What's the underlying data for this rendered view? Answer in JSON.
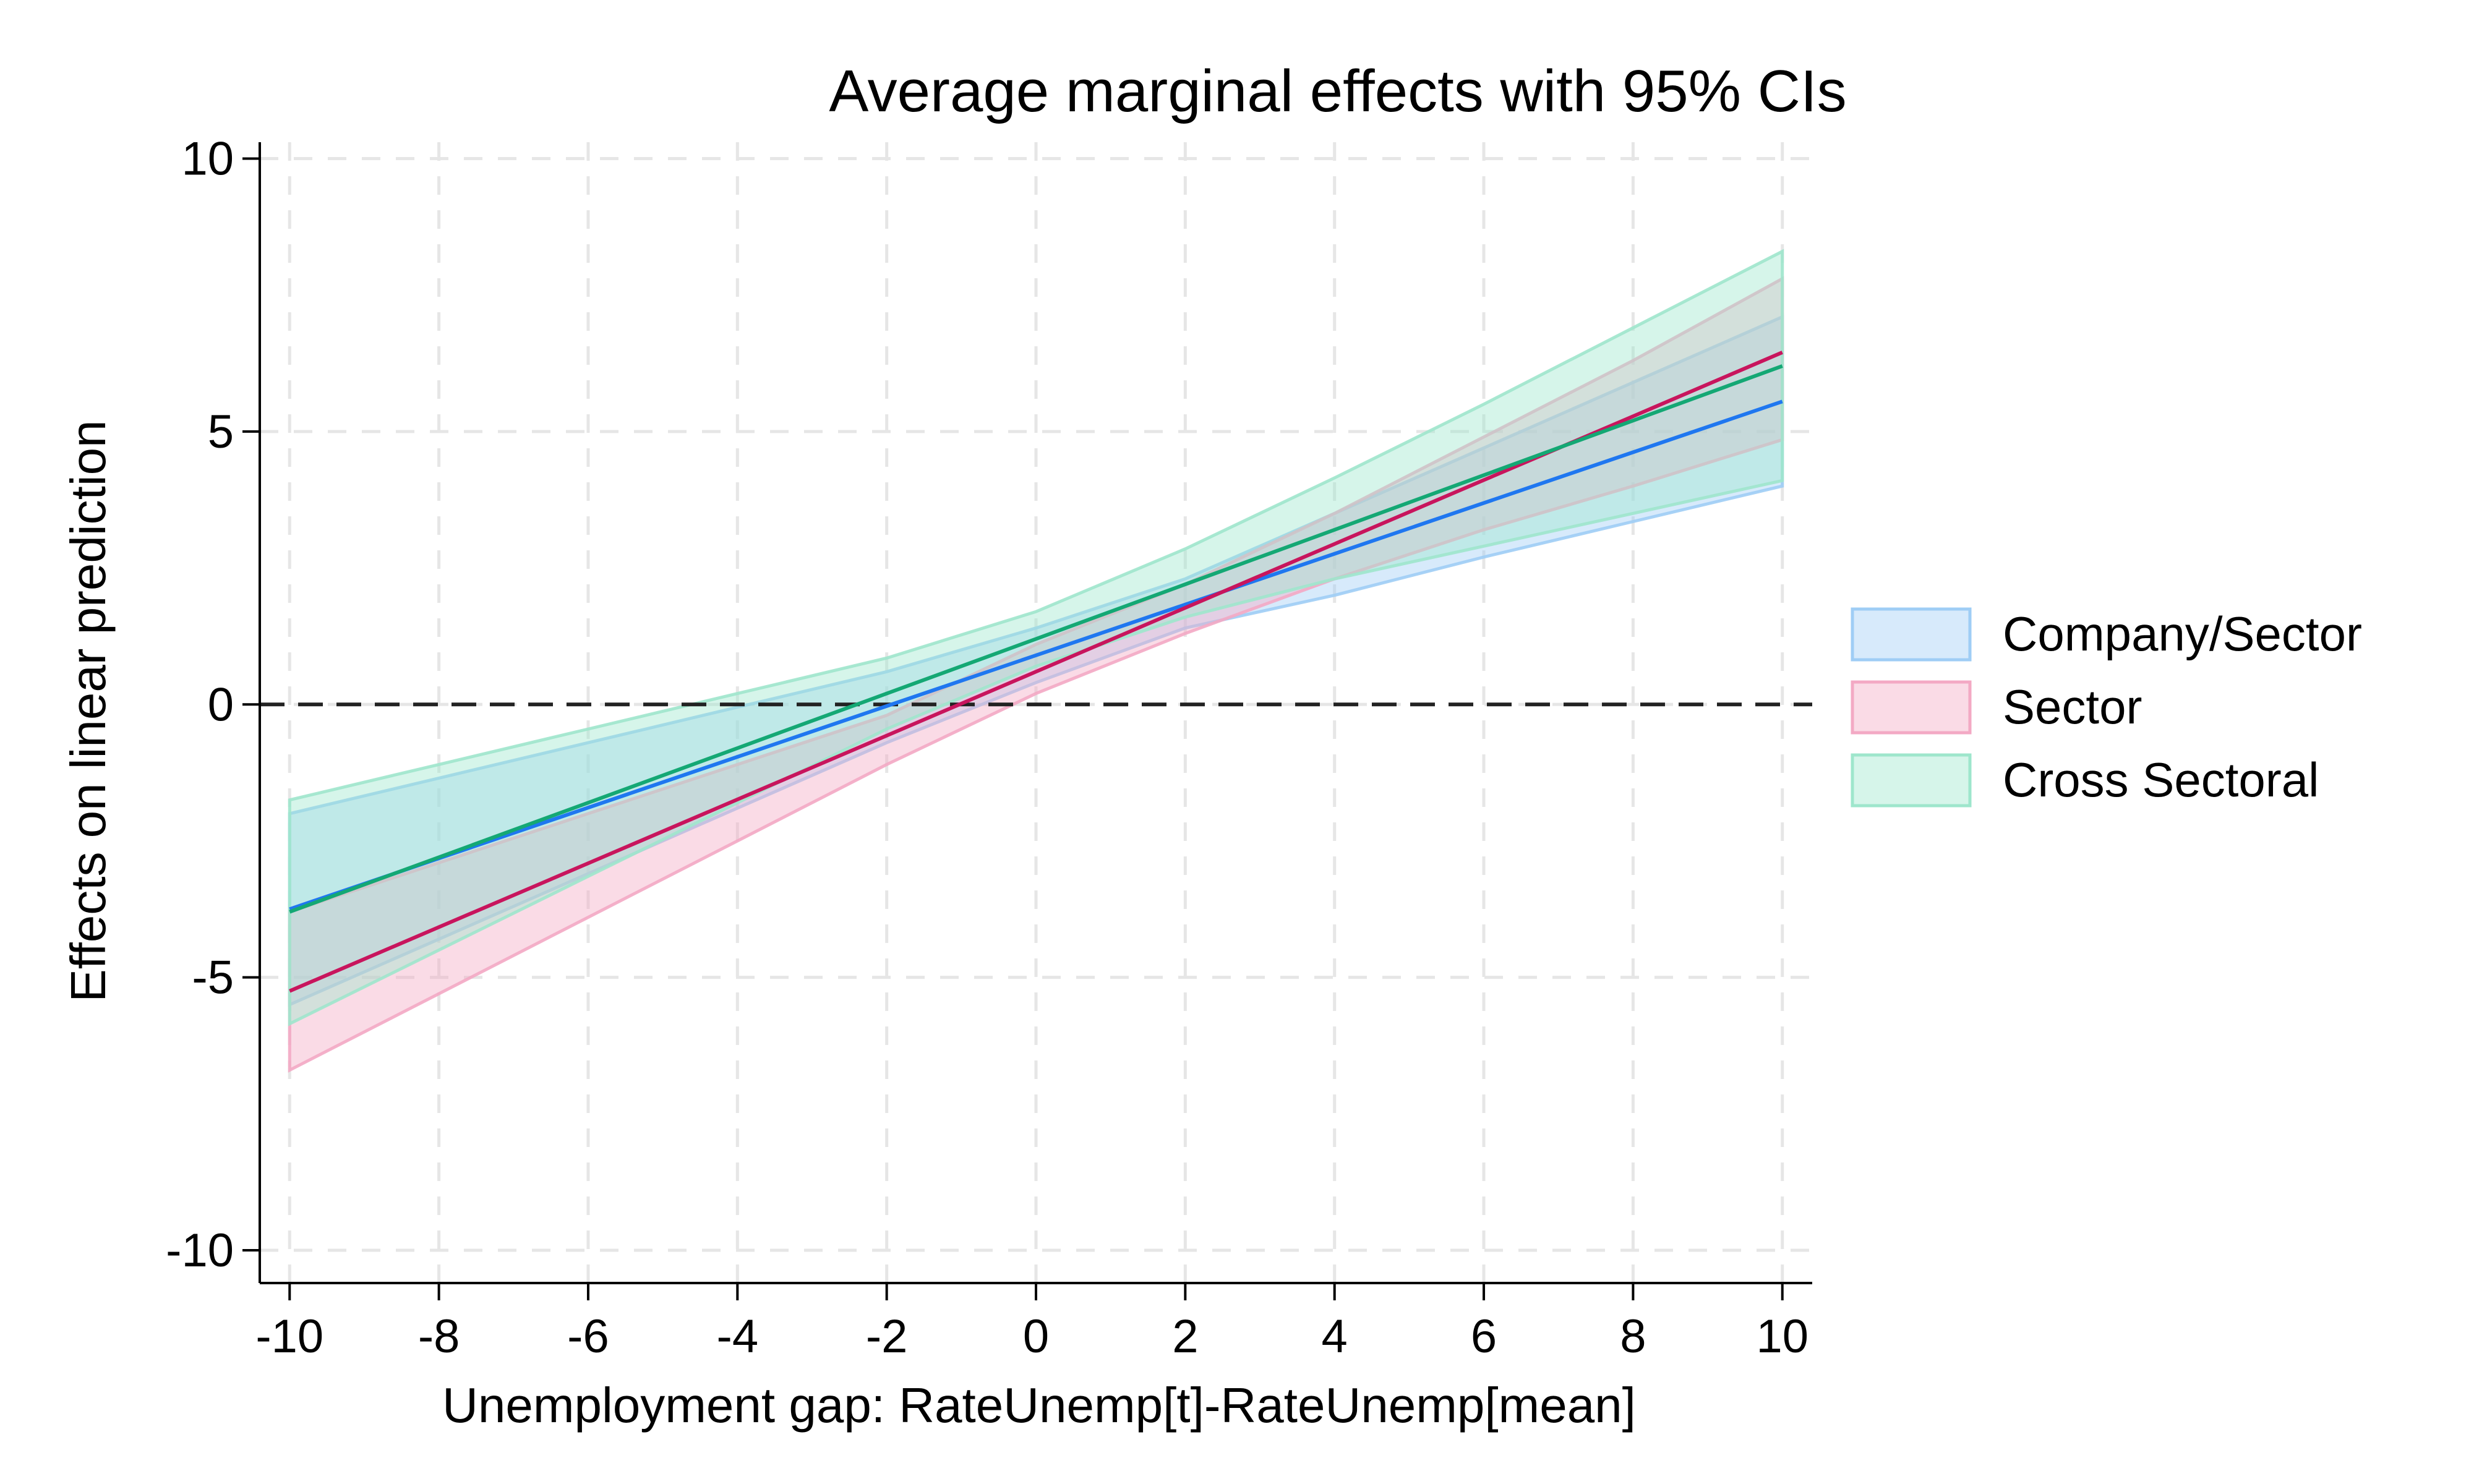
{
  "chart_data": {
    "type": "line",
    "title": "Average marginal effects with 95% CIs",
    "xlabel": "Unemployment gap: RateUnemp[t]-RateUnemp[mean]",
    "ylabel": "Effects on linear prediction",
    "xlim": [
      -10.4,
      10.4
    ],
    "ylim": [
      -10.6,
      10.3
    ],
    "x_ticks": [
      -10,
      -8,
      -6,
      -4,
      -2,
      0,
      2,
      4,
      6,
      8,
      10
    ],
    "y_ticks": [
      -10,
      -5,
      0,
      5,
      10
    ],
    "x_tick_labels": [
      "-10",
      "-8",
      "-6",
      "-4",
      "-2",
      "0",
      "2",
      "4",
      "6",
      "8",
      "10"
    ],
    "y_tick_labels": [
      "-10",
      "-5",
      "0",
      "5",
      "10"
    ],
    "grid": true,
    "reference_line": 0,
    "legend_position": "right",
    "x": [
      -10,
      -8,
      -6,
      -4,
      -2,
      0,
      2,
      4,
      6,
      8,
      10
    ],
    "series": [
      {
        "name": "Company/Sector",
        "color": "#1f77f0",
        "fill": "#9fcdf5",
        "values": [
          -3.75,
          -2.82,
          -1.89,
          -0.96,
          -0.03,
          0.9,
          1.83,
          2.76,
          3.69,
          4.62,
          5.55
        ],
        "upper": [
          -2.0,
          -1.35,
          -0.7,
          -0.05,
          0.6,
          1.4,
          2.3,
          3.5,
          4.7,
          5.9,
          7.1
        ],
        "lower": [
          -5.5,
          -4.3,
          -3.1,
          -1.9,
          -0.7,
          0.4,
          1.4,
          2.0,
          2.7,
          3.35,
          4.0
        ]
      },
      {
        "name": "Sector",
        "color": "#c8155d",
        "fill": "#f3a9c4",
        "values": [
          -5.25,
          -4.08,
          -2.91,
          -1.74,
          -0.57,
          0.6,
          1.77,
          2.94,
          4.11,
          5.28,
          6.45
        ],
        "upper": [
          -3.8,
          -2.9,
          -2.0,
          -1.1,
          -0.2,
          1.1,
          2.2,
          3.5,
          4.9,
          6.3,
          7.8
        ],
        "lower": [
          -6.7,
          -5.3,
          -3.9,
          -2.5,
          -1.1,
          0.2,
          1.3,
          2.3,
          3.2,
          4.0,
          4.85
        ]
      },
      {
        "name": "Cross Sectoral",
        "color": "#14a874",
        "fill": "#9ee6cc",
        "values": [
          -3.8,
          -2.8,
          -1.8,
          -0.8,
          0.2,
          1.2,
          2.2,
          3.2,
          4.2,
          5.2,
          6.2
        ],
        "upper": [
          -1.75,
          -1.1,
          -0.45,
          0.2,
          0.85,
          1.7,
          2.85,
          4.15,
          5.5,
          6.9,
          8.3
        ],
        "lower": [
          -5.85,
          -4.5,
          -3.15,
          -1.8,
          -0.45,
          0.7,
          1.6,
          2.3,
          2.9,
          3.5,
          4.1
        ]
      }
    ]
  }
}
